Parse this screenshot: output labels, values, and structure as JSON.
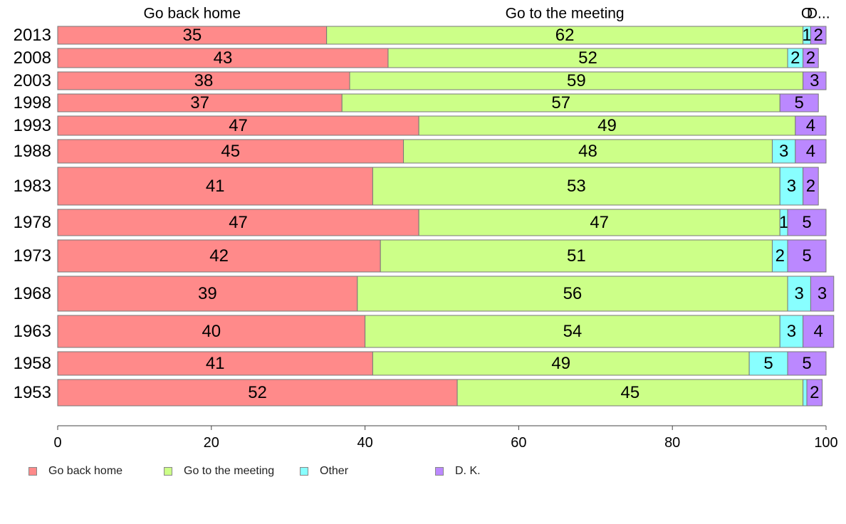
{
  "chart_data": {
    "type": "bar",
    "orientation": "horizontal",
    "stacked": true,
    "categories": [
      "2013",
      "2008",
      "2003",
      "1998",
      "1993",
      "1988",
      "1983",
      "1978",
      "1973",
      "1968",
      "1963",
      "1958",
      "1953"
    ],
    "series": [
      {
        "name": "Go back home",
        "color": "#ff8a8a",
        "values": [
          35,
          43,
          38,
          37,
          47,
          45,
          41,
          47,
          42,
          39,
          40,
          41,
          52
        ]
      },
      {
        "name": "Go to the meeting",
        "color": "#ccff88",
        "values": [
          62,
          52,
          59,
          57,
          49,
          48,
          53,
          47,
          51,
          56,
          54,
          49,
          45
        ]
      },
      {
        "name": "Other",
        "color": "#88ffff",
        "values": [
          1,
          2,
          0,
          0,
          0,
          3,
          3,
          1,
          2,
          3,
          3,
          5,
          0.5
        ]
      },
      {
        "name": "D. K.",
        "color": "#bb88ff",
        "values": [
          2,
          2,
          3,
          5,
          4,
          4,
          2,
          5,
          5,
          3,
          4,
          5,
          2
        ]
      }
    ],
    "bar_widths": [
      25,
      27,
      25,
      25,
      27,
      33,
      53,
      37,
      45,
      49,
      45,
      33,
      37
    ],
    "top_labels": [
      "Go back home",
      "Go to the meeting",
      "Other",
      "D. K."
    ],
    "top_label_display": [
      "Go back home",
      "Go to the meeting",
      "O",
      "D..."
    ],
    "xlim": [
      0,
      100
    ],
    "xticks": [
      "0",
      "20",
      "40",
      "60",
      "80",
      "100"
    ],
    "legend_position": "bottom-left",
    "grid": false
  }
}
